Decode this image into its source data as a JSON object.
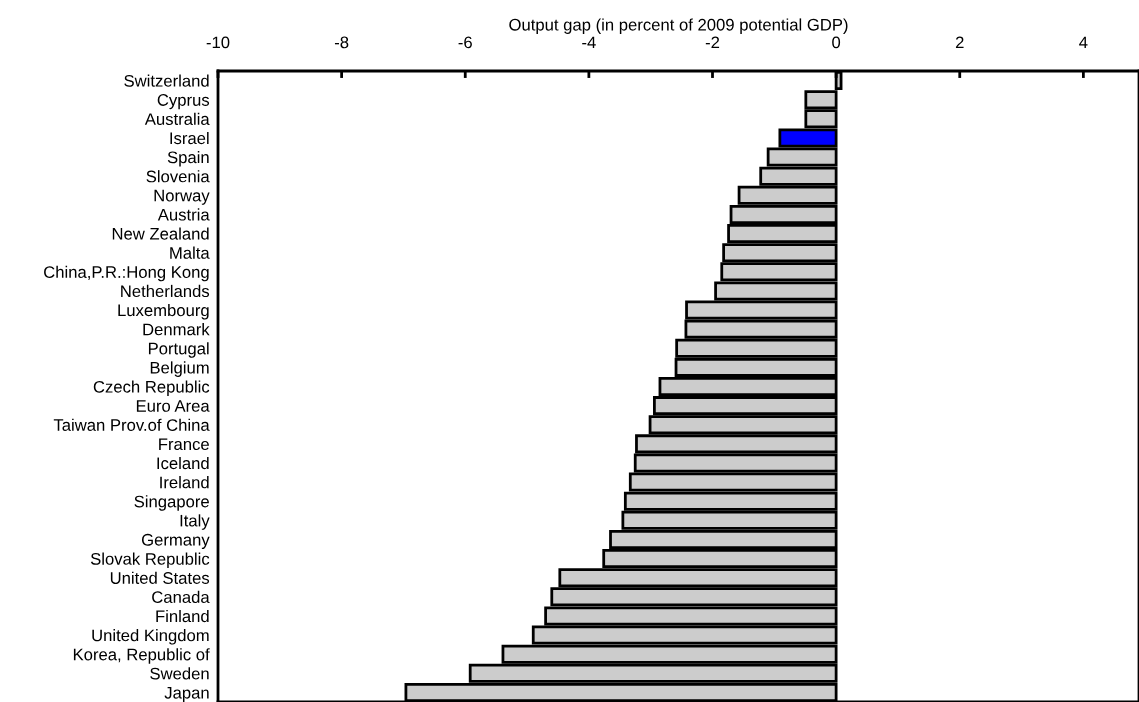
{
  "chart_data": {
    "type": "bar",
    "orientation": "horizontal",
    "xlabel": "Output gap (in percent of 2009 potential GDP)",
    "categories": [
      "Switzerland",
      "Cyprus",
      "Australia",
      "Israel",
      "Spain",
      "Slovenia",
      "Norway",
      "Austria",
      "New Zealand",
      "Malta",
      "China,P.R.:Hong Kong",
      "Netherlands",
      "Luxembourg",
      "Denmark",
      "Portugal",
      "Belgium",
      "Czech Republic",
      "Euro Area",
      "Taiwan Prov.of China",
      "France",
      "Iceland",
      "Ireland",
      "Singapore",
      "Italy",
      "Germany",
      "Slovak Republic",
      "United States",
      "Canada",
      "Finland",
      "United Kingdom",
      "Korea, Republic of",
      "Sweden",
      "Japan"
    ],
    "values": [
      0.08,
      -0.49,
      -0.49,
      -0.91,
      -1.1,
      -1.22,
      -1.57,
      -1.7,
      -1.74,
      -1.82,
      -1.85,
      -1.95,
      -2.42,
      -2.43,
      -2.58,
      -2.59,
      -2.85,
      -2.94,
      -3.01,
      -3.23,
      -3.25,
      -3.33,
      -3.41,
      -3.45,
      -3.65,
      -3.76,
      -4.47,
      -4.6,
      -4.7,
      -4.9,
      -5.39,
      -5.92,
      -6.96
    ],
    "colors": [
      "#cccccc",
      "#cccccc",
      "#cccccc",
      "#0000ff",
      "#cccccc",
      "#cccccc",
      "#cccccc",
      "#cccccc",
      "#cccccc",
      "#cccccc",
      "#cccccc",
      "#cccccc",
      "#cccccc",
      "#cccccc",
      "#cccccc",
      "#cccccc",
      "#cccccc",
      "#cccccc",
      "#cccccc",
      "#cccccc",
      "#cccccc",
      "#cccccc",
      "#cccccc",
      "#cccccc",
      "#cccccc",
      "#cccccc",
      "#cccccc",
      "#cccccc",
      "#cccccc",
      "#cccccc",
      "#cccccc",
      "#cccccc",
      "#cccccc"
    ],
    "xlim": [
      -10,
      4.9
    ],
    "xticks": [
      -10,
      -8,
      -6,
      -4,
      -2,
      0,
      2,
      4
    ],
    "grid": false,
    "legend": false
  }
}
